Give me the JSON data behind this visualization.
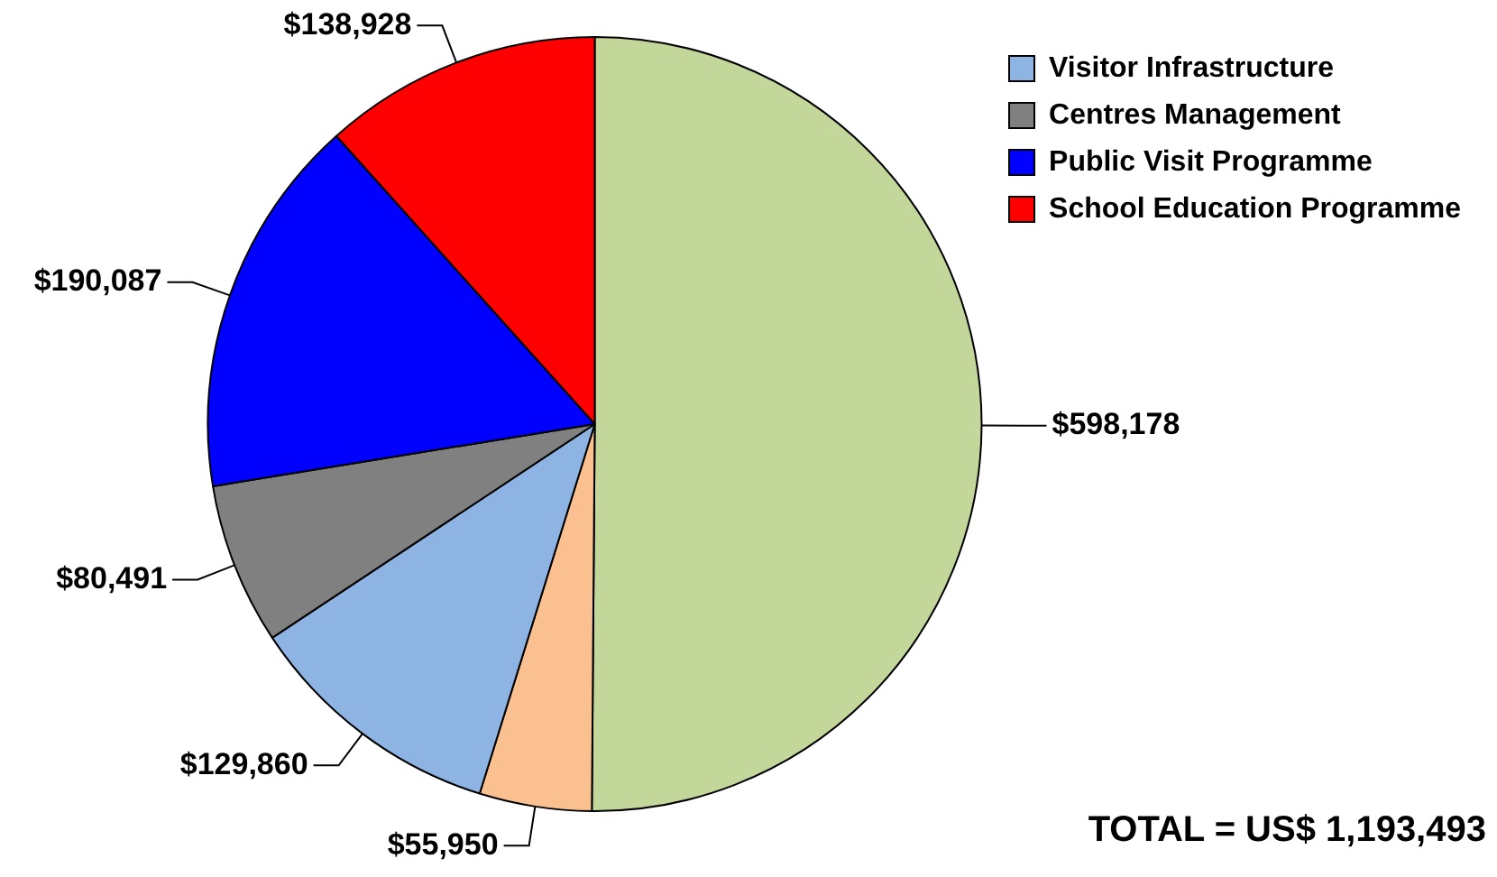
{
  "chart_data": {
    "type": "pie",
    "categories": [
      null,
      null,
      "Visitor Infrastructure",
      "Centres Management",
      "Public Visit Programme",
      "School Education Programme"
    ],
    "values": [
      598178,
      55950,
      129860,
      80491,
      190087,
      138928
    ],
    "colors": [
      "#c4d79b",
      "#fac090",
      "#8db4e2",
      "#808080",
      "#0000ff",
      "#ff0000"
    ],
    "value_labels": [
      "$598,178",
      "$55,950",
      "$129,860",
      "$80,491",
      "$190,087",
      "$138,928"
    ],
    "legend": "top right",
    "annotations": [
      "TOTAL = US$ 1,193,493"
    ]
  }
}
